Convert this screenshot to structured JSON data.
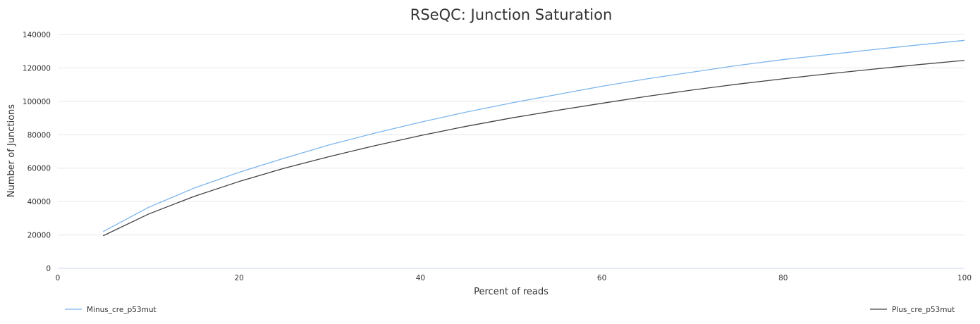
{
  "chart_data": {
    "type": "line",
    "title": "RSeQC: Junction Saturation",
    "xlabel": "Percent of reads",
    "ylabel": "Number of Junctions",
    "xlim": [
      0,
      100
    ],
    "ylim": [
      0,
      140000
    ],
    "x_ticks": [
      "0",
      "20",
      "40",
      "60",
      "80",
      "100"
    ],
    "y_ticks": [
      "0",
      "20000",
      "40000",
      "60000",
      "80000",
      "100000",
      "120000",
      "140000"
    ],
    "grid": true,
    "legend_position": "bottom",
    "x": [
      5,
      10,
      15,
      20,
      25,
      30,
      35,
      40,
      45,
      50,
      55,
      60,
      65,
      70,
      75,
      80,
      85,
      90,
      95,
      100
    ],
    "series": [
      {
        "name": "Minus_cre_p53mut",
        "color": "#7cb5ec",
        "values": [
          22000,
          36500,
          48000,
          57500,
          66000,
          74000,
          81000,
          87500,
          93500,
          99000,
          104000,
          109000,
          113500,
          117500,
          121500,
          125000,
          128000,
          131000,
          133800,
          136500
        ]
      },
      {
        "name": "Plus_cre_p53mut",
        "color": "#434348",
        "values": [
          19500,
          32500,
          43000,
          52000,
          60000,
          67000,
          73500,
          79500,
          85000,
          90000,
          94500,
          98800,
          103000,
          106800,
          110300,
          113500,
          116500,
          119300,
          122000,
          124500
        ]
      }
    ]
  }
}
